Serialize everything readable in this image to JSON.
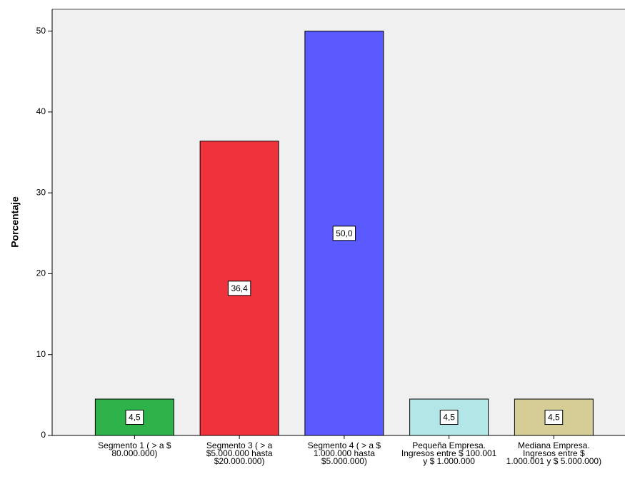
{
  "chart_data": {
    "type": "bar",
    "y_label": "Porcentaje",
    "categories": [
      "Segmento 1 ( > a $ 80.000.000)",
      "Segmento 3 ( > a $5.000.000 hasta $20.000.000)",
      "Segmento 4 ( > a $ 1.000.000 hasta $5.000.000)",
      "Pequeña Empresa. Ingresos entre $ 100.001 y $ 1.000.000",
      "Mediana Empresa. Ingresos entre $ 1.000.001 y $ 5.000.000)"
    ],
    "values": [
      4.5,
      36.4,
      50.0,
      4.5,
      4.5
    ],
    "value_labels": [
      "4,5",
      "36,4",
      "50,0",
      "4,5",
      "4,5"
    ],
    "colors": [
      "#2db34a",
      "#f0323c",
      "#5a5aff",
      "#b3e6e6",
      "#d5cc96"
    ],
    "ylim": [
      0,
      52.7
    ],
    "yticks": [
      0,
      10,
      20,
      30,
      40,
      50
    ]
  }
}
